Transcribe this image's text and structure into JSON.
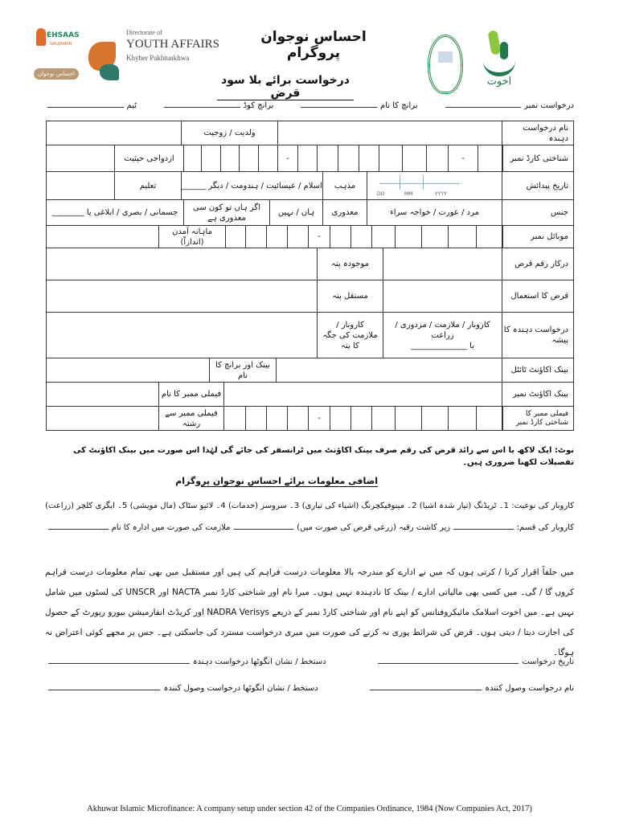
{
  "header": {
    "ehsaas_logo_text": "EHSAAS",
    "ehsaas_logo_sub": "NAUJAWAN",
    "ehsaas_badge": "احساس نوجوان",
    "directorate_of": "Directorate of",
    "youth_affairs": "YOUTH AFFAIRS",
    "kp": "Khyber Pakhtunkhwa",
    "program_title": "احساس نوجوان پروگرام",
    "akhuwat_logo_text": "اخوت"
  },
  "form_title": "درخواست برائے بلا سود قرض",
  "top_fields": {
    "application_no": "درخواست نمبر",
    "branch_name": "برانچ کا نام",
    "branch_code": "برانچ کوڈ",
    "team": "ٹیم"
  },
  "table": {
    "applicant_name": "نام درخواست دہندہ",
    "father_spouse": "ولدیت / زوجیت",
    "cnic": "شناختی کارڈ نمبر",
    "marital_status": "ازدواجی حیثیت",
    "dob": "تاریخ پیدائش",
    "dd": "DD",
    "mm": "MM",
    "yyyy": "YYYY",
    "religion": "مذہب",
    "religion_options": "اسلام / عیسائیت / ہندومت / دیگر ______",
    "education": "تعلیم",
    "gender": "جنس",
    "gender_options": "مرد / عورت / خواجہ سراء",
    "disability": "معذوری",
    "yes_no": "ہاں / نہیں",
    "disability_type_q": "اگر ہاں تو کون سی معذوری ہے",
    "disability_types": "جسمانی / بصری / ابلاغی یا ________",
    "mobile": "موبائل نمبر",
    "monthly_income": "ماہانہ آمدن (اندازاً)",
    "loan_amount": "درکار رقم قرض",
    "current_address": "موجودہ پتہ",
    "loan_use": "قرض کا استعمال",
    "permanent_address": "مستقل پتہ",
    "profession": "درخواست دہندہ کا پیشہ",
    "profession_options": "کاروبار / ملازمت / مزدوری / زراعت",
    "profession_or": "یا ______________",
    "work_address": "کاروبار / ملازمت کی جگہ کا پتہ",
    "account_title": "بینک اکاؤنٹ ٹائٹل",
    "bank_branch": "بینک اور برانچ کا نام",
    "account_no": "بینک اکاؤنٹ نمبر",
    "family_member_name": "فیملی ممبر کا نام",
    "family_cnic": "فیملی ممبر کا شناختی کارڈ نمبر",
    "family_relation": "فیملی ممبر سے رشتہ",
    "dash": "-"
  },
  "note": "نوٹ: ایک لاکھ یا اس سے زائد قرض کی رقم صرف بینک اکاؤنٹ میں ٹرانسفر کی جائے گی لہٰذا اس صورت میں بینک اکاؤنٹ کی تفصیلات لکھنا ضروری ہیں۔",
  "additional_title": "اضافی معلومات برائے احساس نوجوان پروگرام",
  "business_type": {
    "label": "کاروبار کی نوعیت:",
    "options": [
      "1۔ ٹریڈنگ (تیار شدہ اشیا)",
      "2۔ مینوفیکچرنگ (اشیاء کی تیاری)",
      "3۔ سروسز (خدمات)",
      "4۔ لائیو سٹاک (مال مویشی)",
      "5۔ ایگری کلچر (زراعت)"
    ]
  },
  "business_kind": {
    "label": "کاروبار کی قسم:",
    "land_area": "زیر کاشت رقبہ (زرعی قرض کی صورت میں)",
    "institution": "ملازمت کی صورت میں ادارہ کا نام"
  },
  "declaration": "میں حلفاً اقرار کرتا / کرتی ہوں کہ میں نے ادارے کو مندرجہ بالا معلومات درست فراہم کی ہیں اور مستقبل میں بھی تمام معلومات درست فراہم کروں گا / گی۔ میں کسی بھی مالیاتی ادارے / بینک کا نادہندہ نہیں ہوں۔ میرا نام اور شناختی کارڈ نمبر NACTA اور UNSCR کی لسٹوں میں شامل نہیں ہے۔ میں اخوت اسلامک مائیکروفنانس کو اپنے نام اور شناختی کارڈ نمبر کے ذریعے NADRA Verisys اور کریڈٹ انفارمیشن بیورو رپورٹ کے حصول کی اجازت دیتا / دیتی ہوں۔ قرض کی شرائط پوری نہ کرنے کی صورت میں میری درخواست مسترد کی جاسکتی ہے۔ جس پر مجھے کوئی اعتراض نہ ہوگا۔",
  "signatures": {
    "application_date": "تاریخ درخواست",
    "applicant_signature": "دستخط / نشان انگوٹھا درخواست دہندہ",
    "receiver_name": "نام درخواست وصول کنندہ",
    "receiver_signature": "دستخط / نشان انگوٹھا درخواست وصول کنندہ"
  },
  "footer": "Akhuwat Islamic Microfinance: A company setup under section 42 of the Companies Ordinance, 1984 (Now Companies Act, 2017)",
  "colors": {
    "ehsaas_green": "#1f8a5c",
    "ehsaas_orange": "#e06a2a",
    "badge": "#b89a74",
    "akhuwat_green": "#1e7a4a",
    "akhuwat_lime": "#8cc63f",
    "date_line": "#7fb8c8"
  }
}
